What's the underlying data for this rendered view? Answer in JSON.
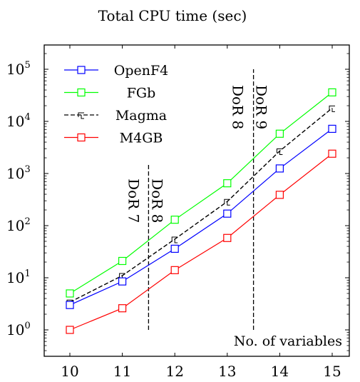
{
  "chart_data": {
    "type": "line",
    "title": "Total CPU time (sec)",
    "xlabel": "No. of variables",
    "ylabel": "",
    "x": [
      10,
      11,
      12,
      13,
      14,
      15
    ],
    "yscale": "log",
    "ylim_exponent": [
      -0.5,
      5.5
    ],
    "yticks": [
      {
        "base": "10",
        "exp": "0"
      },
      {
        "base": "10",
        "exp": "1"
      },
      {
        "base": "10",
        "exp": "2"
      },
      {
        "base": "10",
        "exp": "3"
      },
      {
        "base": "10",
        "exp": "4"
      },
      {
        "base": "10",
        "exp": "5"
      }
    ],
    "grid": false,
    "legend_position": "top-left",
    "series": [
      {
        "name": "OpenF4",
        "color": "#0000ff",
        "dash": "solid",
        "marker": "square",
        "values": [
          3.0,
          8.5,
          36,
          170,
          1250,
          7200
        ]
      },
      {
        "name": "FGb",
        "color": "#00ff00",
        "dash": "solid",
        "marker": "square",
        "values": [
          5.0,
          21,
          130,
          650,
          5800,
          36000
        ]
      },
      {
        "name": "Magma",
        "color": "#000000",
        "dash": "dashed",
        "marker": "none",
        "values": [
          3.4,
          11,
          55,
          290,
          2700,
          18000
        ]
      },
      {
        "name": "M4GB",
        "color": "#ff0000",
        "dash": "solid",
        "marker": "square",
        "values": [
          1.0,
          2.6,
          14,
          58,
          390,
          2400
        ]
      }
    ],
    "annotations": [
      {
        "text": "DoR 7",
        "x": 11.5,
        "y": 800
      },
      {
        "text": "DoR 8",
        "x": 11.5,
        "y": 800
      },
      {
        "text": "DoR 8",
        "x": 13.5,
        "y": 50000
      },
      {
        "text": "DoR 9",
        "x": 13.5,
        "y": 50000
      }
    ],
    "vlines": [
      {
        "x": 11.5,
        "y_from": 1,
        "y_to": 1500
      },
      {
        "x": 13.5,
        "y_from": 1,
        "y_to": 100000
      }
    ]
  }
}
